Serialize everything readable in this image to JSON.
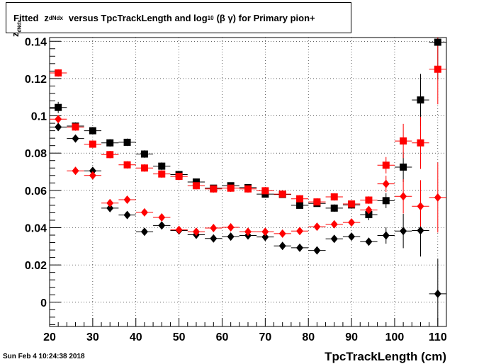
{
  "title": {
    "prefix": "Fitted",
    "z": "z",
    "z_sub": "dNdx",
    "middle": "versus TpcTrackLength and log",
    "log_sub": "10",
    "suffix": "(β γ) for Primary pion+"
  },
  "date_stamp": "Sun Feb  4 10:24:38 2018",
  "chart_data": {
    "type": "scatter",
    "title": "Fitted z_dNdx versus TpcTrackLength and log10(β γ) for Primary pion+",
    "xlabel": "TpcTrackLength (cm)",
    "ylabel": "z_dNdx",
    "xlim": [
      20,
      112
    ],
    "ylim": [
      -0.013,
      0.142
    ],
    "xticks": [
      20,
      30,
      40,
      50,
      60,
      70,
      80,
      90,
      100,
      110
    ],
    "yticks": [
      0,
      0.02,
      0.04,
      0.06,
      0.08,
      0.1,
      0.12,
      0.14
    ],
    "ytick_labels": [
      "0",
      "0.02",
      "0.04",
      "0.06",
      "0.08",
      "0.1",
      "0.12",
      "0.14"
    ],
    "grid": true,
    "x_error": 2,
    "series": [
      {
        "marker": "square",
        "color": "#000000",
        "x": [
          22,
          26,
          30,
          34,
          38,
          42,
          46,
          50,
          54,
          58,
          62,
          66,
          70,
          74,
          78,
          82,
          86,
          90,
          94,
          98,
          102,
          106,
          110
        ],
        "y": [
          0.1045,
          0.0945,
          0.092,
          0.0855,
          0.0858,
          0.0795,
          0.073,
          0.0685,
          0.0645,
          0.0612,
          0.0625,
          0.0615,
          0.058,
          0.0578,
          0.052,
          0.053,
          0.0505,
          0.0522,
          0.047,
          0.0545,
          0.0725,
          0.1085,
          0.1395
        ],
        "err": [
          0.003,
          0.002,
          0.002,
          0.002,
          0.002,
          0.002,
          0.002,
          0.0015,
          0.0015,
          0.0015,
          0.0015,
          0.0015,
          0.0015,
          0.0015,
          0.0015,
          0.0015,
          0.002,
          0.002,
          0.003,
          0.004,
          0.008,
          0.014,
          0.02
        ]
      },
      {
        "marker": "square",
        "color": "#ff0000",
        "x": [
          22,
          26,
          30,
          34,
          38,
          42,
          46,
          50,
          54,
          58,
          62,
          66,
          70,
          74,
          78,
          82,
          86,
          90,
          94,
          98,
          102,
          106,
          110
        ],
        "y": [
          0.123,
          0.094,
          0.0848,
          0.0792,
          0.0737,
          0.072,
          0.0688,
          0.0675,
          0.0625,
          0.0608,
          0.0612,
          0.0608,
          0.0598,
          0.058,
          0.0555,
          0.0538,
          0.0565,
          0.0527,
          0.0548,
          0.0735,
          0.0865,
          0.0855,
          0.125
        ]
      },
      {
        "marker": "diamond",
        "color": "#000000",
        "x": [
          22,
          26,
          30,
          34,
          38,
          42,
          46,
          50,
          54,
          58,
          62,
          66,
          70,
          74,
          78,
          82,
          86,
          90,
          94,
          98,
          102,
          106,
          110
        ],
        "y": [
          0.094,
          0.0878,
          0.0705,
          0.0505,
          0.0468,
          0.0378,
          0.0412,
          0.0385,
          0.0362,
          0.0342,
          0.0352,
          0.0358,
          0.035,
          0.0302,
          0.0292,
          0.0278,
          0.034,
          0.0352,
          0.0325,
          0.0358,
          0.0382,
          0.0385,
          0.0045
        ]
      },
      {
        "marker": "diamond",
        "color": "#ff0000",
        "x": [
          22,
          26,
          30,
          34,
          38,
          42,
          46,
          50,
          54,
          58,
          62,
          66,
          70,
          74,
          78,
          82,
          86,
          90,
          94,
          98,
          102,
          106,
          110
        ],
        "y": [
          0.0982,
          0.0705,
          0.068,
          0.0532,
          0.055,
          0.0482,
          0.0455,
          0.0388,
          0.0378,
          0.0398,
          0.0402,
          0.0378,
          0.0378,
          0.0368,
          0.0382,
          0.0405,
          0.0418,
          0.0428,
          0.0495,
          0.0635,
          0.0568,
          0.0515,
          0.0562
        ]
      }
    ]
  }
}
